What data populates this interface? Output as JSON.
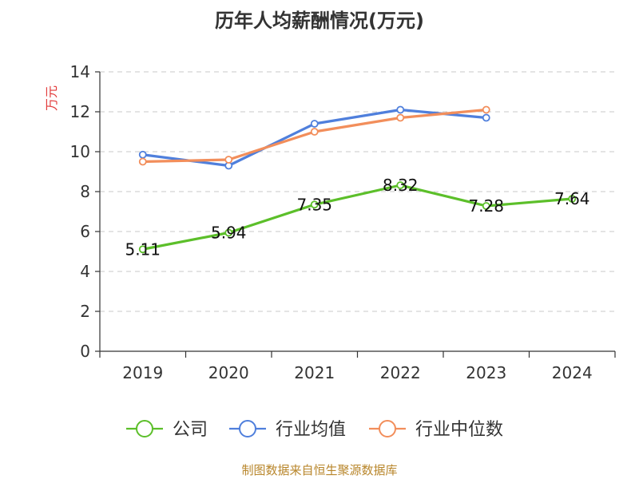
{
  "chart_data": {
    "type": "line",
    "title": "历年人均薪酬情况(万元)",
    "ylabel": "万元",
    "xlabel": "",
    "ylim": [
      0,
      14
    ],
    "yticks": [
      0,
      2,
      4,
      6,
      8,
      10,
      12,
      14
    ],
    "categories": [
      "2019",
      "2020",
      "2021",
      "2022",
      "2023",
      "2024"
    ],
    "grid": true,
    "legend": "bottom",
    "series": [
      {
        "name": "公司",
        "color": "#5cbf2a",
        "values": [
          5.11,
          5.94,
          7.35,
          8.32,
          7.28,
          7.64
        ],
        "labels": [
          "5.11",
          "5.94",
          "7.35",
          "8.32",
          "7.28",
          "7.64"
        ]
      },
      {
        "name": "行业均值",
        "color": "#4f7fdc",
        "values": [
          9.85,
          9.3,
          11.4,
          12.1,
          11.7,
          null
        ]
      },
      {
        "name": "行业中位数",
        "color": "#f28e5b",
        "values": [
          9.5,
          9.6,
          11.0,
          11.7,
          12.1,
          null
        ]
      }
    ]
  },
  "footer": {
    "source": "制图数据来自恒生聚源数据库"
  }
}
